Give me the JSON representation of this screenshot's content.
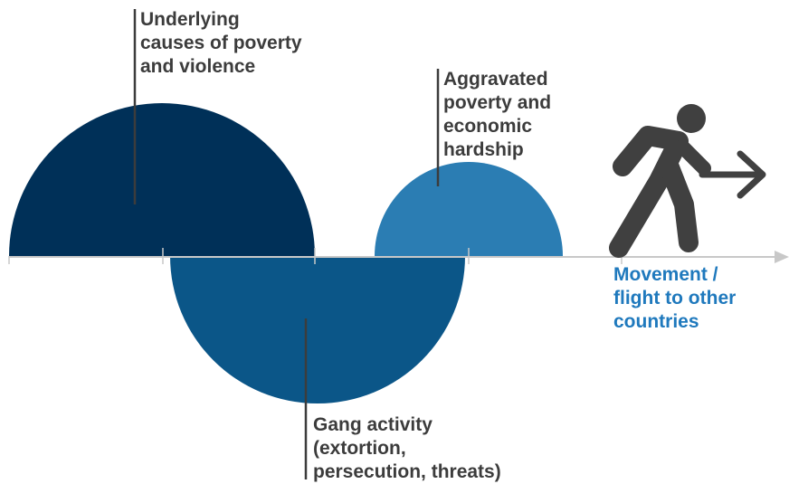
{
  "labels": {
    "underlying": "Underlying\ncauses of poverty\nand violence",
    "aggravated": "Aggravated\npoverty and\neconomic\nhardship",
    "gang": "Gang activity\n(extortion,\npersecution, threats)",
    "movement": "Movement /\nflight to other\ncountries"
  },
  "icons": {
    "person": "running-person-icon",
    "arrow": "arrow-right-icon"
  },
  "colors": {
    "dark_navy": "#003058",
    "mid_blue": "#0b5688",
    "light_blue": "#2b7db3",
    "label_text": "#3c3c3c",
    "highlight_text": "#1f79bd",
    "axis": "#c8c8c8",
    "icon": "#404040"
  }
}
